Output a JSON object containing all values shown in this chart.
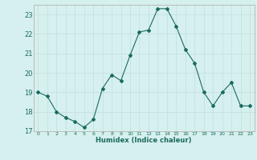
{
  "x": [
    0,
    1,
    2,
    3,
    4,
    5,
    6,
    7,
    8,
    9,
    10,
    11,
    12,
    13,
    14,
    15,
    16,
    17,
    18,
    19,
    20,
    21,
    22,
    23
  ],
  "y": [
    19,
    18.8,
    18.0,
    17.7,
    17.5,
    17.2,
    17.6,
    19.2,
    19.9,
    19.6,
    20.9,
    22.1,
    22.2,
    23.3,
    23.3,
    22.4,
    21.2,
    20.5,
    19.0,
    18.3,
    19.0,
    19.5,
    18.3,
    18.3
  ],
  "line_color": "#1a6b5e",
  "bg_color": "#d6f0ef",
  "grid_color": "#c0dedd",
  "xlabel": "Humidex (Indice chaleur)",
  "ylim": [
    17,
    23.5
  ],
  "xlim": [
    -0.5,
    23.5
  ],
  "yticks": [
    17,
    18,
    19,
    20,
    21,
    22,
    23
  ],
  "xtick_labels": [
    "0",
    "1",
    "2",
    "3",
    "4",
    "5",
    "6",
    "7",
    "8",
    "9",
    "10",
    "11",
    "12",
    "13",
    "14",
    "15",
    "16",
    "17",
    "18",
    "19",
    "20",
    "21",
    "22",
    "23"
  ]
}
